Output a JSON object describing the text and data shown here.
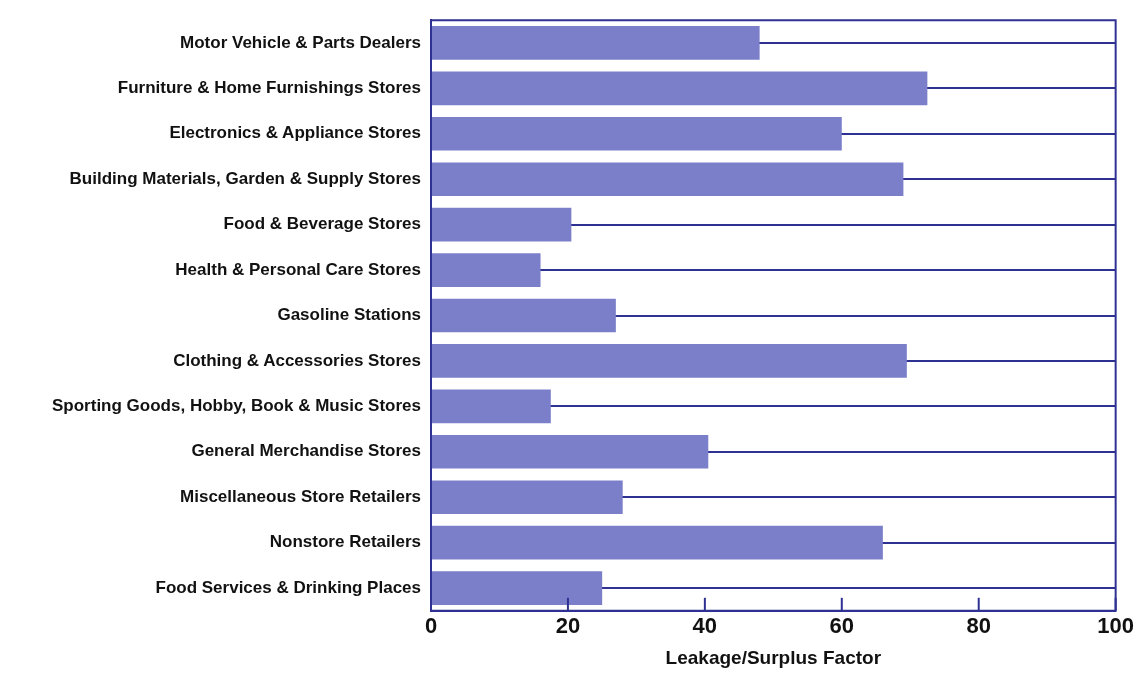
{
  "chart_data": {
    "type": "bar",
    "orientation": "horizontal",
    "xlabel": "Leakage/Surplus Factor",
    "categories": [
      "Motor Vehicle & Parts Dealers",
      "Furniture & Home Furnishings Stores",
      "Electronics & Appliance Stores",
      "Building Materials, Garden & Supply Stores",
      "Food & Beverage Stores",
      "Health & Personal Care Stores",
      "Gasoline Stations",
      "Clothing & Accessories Stores",
      "Sporting Goods, Hobby, Book & Music Stores",
      "General Merchandise Stores",
      "Miscellaneous Store Retailers",
      "Nonstore Retailers",
      "Food Services & Drinking Places"
    ],
    "values": [
      48,
      72.5,
      60,
      69,
      20.5,
      16,
      27,
      69.5,
      17.5,
      40.5,
      28,
      66,
      25
    ],
    "color": "#7b7fc9",
    "xlim": [
      0,
      100
    ],
    "xticks": [
      0,
      20,
      40,
      60,
      80,
      100
    ],
    "grid": "y",
    "legend": false
  }
}
